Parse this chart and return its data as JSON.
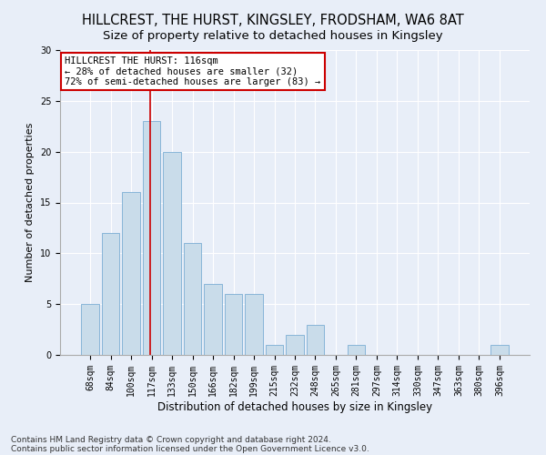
{
  "title": "HILLCREST, THE HURST, KINGSLEY, FRODSHAM, WA6 8AT",
  "subtitle": "Size of property relative to detached houses in Kingsley",
  "xlabel": "Distribution of detached houses by size in Kingsley",
  "ylabel": "Number of detached properties",
  "categories": [
    "68sqm",
    "84sqm",
    "100sqm",
    "117sqm",
    "133sqm",
    "150sqm",
    "166sqm",
    "182sqm",
    "199sqm",
    "215sqm",
    "232sqm",
    "248sqm",
    "265sqm",
    "281sqm",
    "297sqm",
    "314sqm",
    "330sqm",
    "347sqm",
    "363sqm",
    "380sqm",
    "396sqm"
  ],
  "values": [
    5,
    12,
    16,
    23,
    20,
    11,
    7,
    6,
    6,
    1,
    2,
    3,
    0,
    1,
    0,
    0,
    0,
    0,
    0,
    0,
    1
  ],
  "bar_color": "#c9dcea",
  "bar_edge_color": "#7baed4",
  "annotation_text_line1": "HILLCREST THE HURST: 116sqm",
  "annotation_text_line2": "← 28% of detached houses are smaller (32)",
  "annotation_text_line3": "72% of semi-detached houses are larger (83) →",
  "annotation_box_color": "#ffffff",
  "annotation_box_edge": "#cc0000",
  "vline_color": "#cc0000",
  "ylim": [
    0,
    30
  ],
  "yticks": [
    0,
    5,
    10,
    15,
    20,
    25,
    30
  ],
  "footnote_line1": "Contains HM Land Registry data © Crown copyright and database right 2024.",
  "footnote_line2": "Contains public sector information licensed under the Open Government Licence v3.0.",
  "title_fontsize": 10.5,
  "subtitle_fontsize": 9.5,
  "xlabel_fontsize": 8.5,
  "ylabel_fontsize": 8,
  "tick_fontsize": 7,
  "annotation_fontsize": 7.5,
  "footnote_fontsize": 6.5,
  "bg_color": "#e8eef8"
}
